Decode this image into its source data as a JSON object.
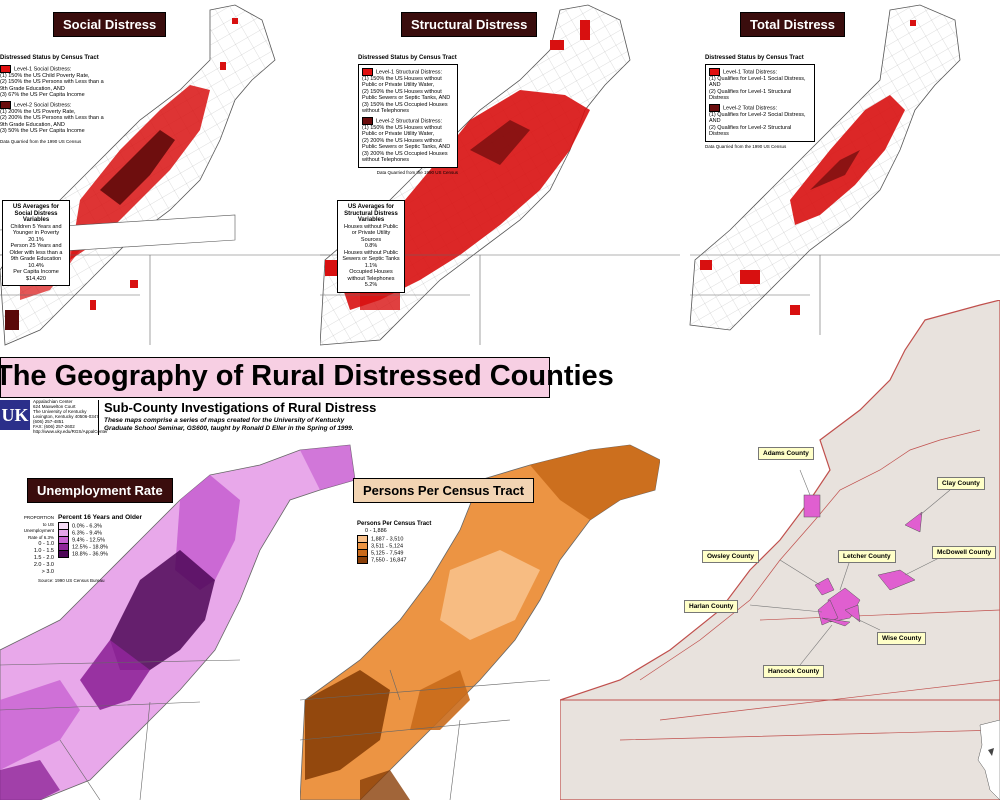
{
  "poster": {
    "main_title": "The Geography of Rural Distressed Counties",
    "subtitle": "Sub-County Investigations of Rural Distress",
    "description_1": "These maps comprise a series of maps created for the University of Kentucky",
    "description_2": "Graduate School Seminar, GS600, taught by Ronald D Eller in the Spring of 1999.",
    "logo_text": "UK",
    "center_name": "Appalachian Center",
    "address_1": "624 Maxwelton Court",
    "address_2": "The University of Kentucky",
    "address_3": "Lexington, Kentucky 40506-0347",
    "phone": "(606) 257-4851",
    "fax": "FAX: (606) 257-2602",
    "url": "http://www.uky.edu/RGS/AppalCenter"
  },
  "maps": {
    "social": {
      "title": "Social Distress",
      "legend_heading": "Distressed Status by Census Tract",
      "level1_label": "Level-1 Social Distress:",
      "level1_c1": "(1) 150% the US Child Poverty Rate,",
      "level1_c2": "(2) 150% the US Persons with Less than a 9th Grade Education, AND",
      "level1_c3": "(3) 67% the US Per Capita Income",
      "level2_label": "Level-2 Social Distress:",
      "level2_c1": "(1) 200% the US Poverty Rate,",
      "level2_c2": "(2) 200% the US Persons with Less than a 9th Grade Education, AND",
      "level2_c3": "(3) 50% the US Per Capita Income",
      "source": "Data Quarried from the 1990 US Census",
      "avg_heading": "US Averages for Social Distress Variables",
      "avg_1": "Children 5 Years and Younger in Poverty",
      "avg_1v": "20.1%",
      "avg_2": "Person 25 Years and Older with less than a 9th Grade Education",
      "avg_2v": "10.4%",
      "avg_3": "Per Capita Income",
      "avg_3v": "$14,420"
    },
    "structural": {
      "title": "Structural Distress",
      "legend_heading": "Distressed Status by Census Tract",
      "level1_label": "Level-1 Structural Distress:",
      "level1_c1": "(1) 150% the US Houses without Public or Private Utility Water,",
      "level1_c2": "(2) 150% the US Houses without Public Sewers or Septic Tanks, AND",
      "level1_c3": "(3) 150% the US Occupied Houses without Telephones",
      "level2_label": "Level-2 Structural Distress:",
      "level2_c1": "(1) 150% the US Houses without Public or Private Utility Water,",
      "level2_c2": "(2) 200% the US Houses without Public Sewers or Septic Tanks, AND",
      "level2_c3": "(3) 200% the US Occupied Houses without Telephones",
      "source": "Data Quarried from the 1990 US Census",
      "avg_heading": "US Averages for Structural Distress Variables",
      "avg_1": "Houses without Public or Private Utility Sources",
      "avg_1v": "0.8%",
      "avg_2": "Houses without Public Sewers or Septic Tanks",
      "avg_2v": "1.1%",
      "avg_3": "Occupied Houses without Telephones",
      "avg_3v": "5.2%"
    },
    "total": {
      "title": "Total Distress",
      "legend_heading": "Distressed Status by Census Tract",
      "level1_label": "Level-1 Total Distress:",
      "level1_c1": "(1) Qualifies for Level-1 Social Distress, AND",
      "level1_c2": "(2) Qualifies for Level-1 Structural Distress",
      "level2_label": "Level-2 Total Distress:",
      "level2_c1": "(1) Qualifies for Level-2 Social Distress, AND",
      "level2_c2": "(2) Qualifies for Level-2 Structural Distress",
      "source": "Data Quarried from the 1990 US Census"
    },
    "unemployment": {
      "title": "Unemployment Rate",
      "legend_heading": "Percent 16 Years and Older",
      "side_heading": "PROPORTION to US Unemployment Rate of 6.3%",
      "classes": [
        {
          "ratio": "0 - 1.0",
          "range": "0.0% - 6.3%",
          "color": "#f6dcf6"
        },
        {
          "ratio": "1.0 - 1.5",
          "range": "6.3% - 9.4%",
          "color": "#e6a5ea"
        },
        {
          "ratio": "1.5 - 2.0",
          "range": "9.4% - 12.5%",
          "color": "#c862d2"
        },
        {
          "ratio": "2.0 - 3.0",
          "range": "12.5% - 18.8%",
          "color": "#8f2599"
        },
        {
          "ratio": "> 3.0",
          "range": "18.8% - 36.9%",
          "color": "#4d0757"
        }
      ],
      "source": "Source: 1990 US Census Bureau"
    },
    "persons": {
      "title": "Persons Per Census Tract",
      "legend_heading": "Persons Per Census Tract",
      "classes": [
        {
          "range": "0 - 1,886",
          "color": "#fde8cc"
        },
        {
          "range": "1,887 - 3,510",
          "color": "#f8c08a"
        },
        {
          "range": "3,511 - 5,124",
          "color": "#ec9443"
        },
        {
          "range": "5,125 - 7,549",
          "color": "#c96a1b"
        },
        {
          "range": "7,550 - 16,847",
          "color": "#8a3f08"
        }
      ]
    },
    "counties": {
      "labels": [
        "Adams County",
        "Clay County",
        "Owsley County",
        "Letcher County",
        "McDowell County",
        "Harlan County",
        "Wise County",
        "Hancock County"
      ]
    }
  },
  "colors": {
    "title_bg": "#3a0d0d",
    "distress_level1": "#e01010",
    "distress_level2": "#6a0c0c",
    "banner_bg": "#f7cfe3",
    "highlight_county": "#e05fd0",
    "county_fill": "#e8e2dd"
  }
}
